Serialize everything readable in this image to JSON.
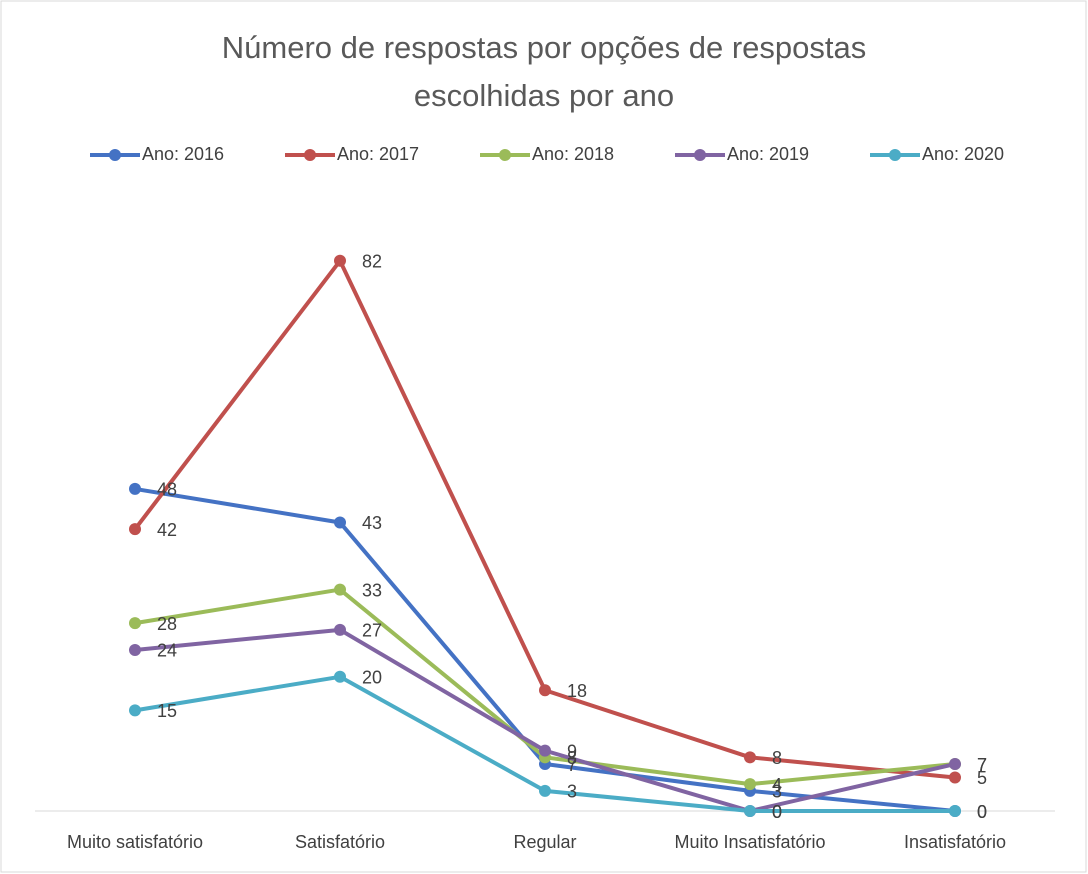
{
  "chart_data": {
    "type": "line",
    "title": "Número de respostas por opções de respostas escolhidas por ano",
    "categories": [
      "Muito satisfatório",
      "Satisfatório",
      "Regular",
      "Muito Insatisfatório",
      "Insatisfatório"
    ],
    "series": [
      {
        "name": "Ano: 2016",
        "color": "#4472c4",
        "values": [
          48,
          43,
          7,
          3,
          0
        ]
      },
      {
        "name": "Ano: 2017",
        "color": "#c0504d",
        "values": [
          42,
          82,
          18,
          8,
          5
        ]
      },
      {
        "name": "Ano: 2018",
        "color": "#9bbb59",
        "values": [
          28,
          33,
          8,
          4,
          7
        ]
      },
      {
        "name": "Ano: 2019",
        "color": "#8064a2",
        "values": [
          24,
          27,
          9,
          0,
          7
        ]
      },
      {
        "name": "Ano: 2020",
        "color": "#4bacc6",
        "values": [
          15,
          20,
          3,
          0,
          0
        ]
      }
    ],
    "ylim": [
      0,
      90
    ],
    "legend": "top",
    "grid": false
  }
}
